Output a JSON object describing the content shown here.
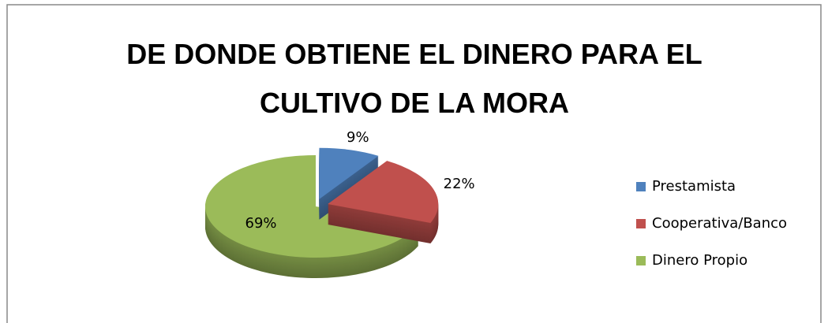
{
  "chart_data": {
    "type": "pie",
    "title": "DE DONDE OBTIENE EL DINERO PARA EL CULTIVO DE LA MORA",
    "categories": [
      "Prestamista",
      "Cooperativa/Banco",
      "Dinero Propio"
    ],
    "values": [
      9,
      22,
      69
    ],
    "value_labels": [
      "9%",
      "22%",
      "69%"
    ],
    "colors": [
      "#4f81bd",
      "#c0504d",
      "#9bbb59"
    ],
    "legend": "right"
  }
}
